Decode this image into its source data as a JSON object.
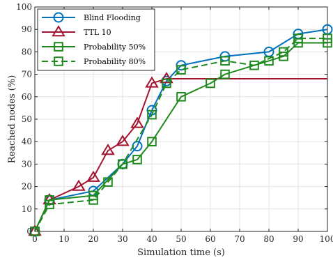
{
  "chart_data": {
    "type": "line",
    "xlabel": "Simulation time (s)",
    "ylabel": "Reached nodes (%)",
    "xlim": [
      0,
      100
    ],
    "ylim": [
      0,
      100
    ],
    "xticks": [
      0,
      10,
      20,
      30,
      40,
      50,
      60,
      70,
      80,
      90,
      100
    ],
    "yticks": [
      0,
      10,
      20,
      30,
      40,
      50,
      60,
      70,
      80,
      90,
      100
    ],
    "grid": true,
    "legend_position": "top-left",
    "series": [
      {
        "name": "Blind Flooding",
        "color": "#0072BD",
        "marker": "circle",
        "line_style": "solid",
        "x": [
          0,
          5,
          20,
          30,
          35,
          40,
          45,
          50,
          65,
          80,
          90,
          100
        ],
        "y": [
          0,
          14,
          18,
          30,
          38,
          54,
          67,
          74,
          78,
          80,
          88,
          90
        ]
      },
      {
        "name": "TTL 10",
        "color": "#A2142F",
        "marker": "triangle",
        "line_style": "solid",
        "x": [
          0,
          5,
          15,
          20,
          25,
          30,
          35,
          40,
          45,
          100
        ],
        "y": [
          0,
          14,
          20,
          24,
          36,
          40,
          48,
          66,
          68,
          68
        ],
        "marker_x": [
          0,
          5,
          15,
          20,
          25,
          30,
          35,
          40,
          45
        ],
        "marker_y": [
          0,
          14,
          20,
          24,
          36,
          40,
          48,
          66,
          68
        ]
      },
      {
        "name": "Probability 50%",
        "color": "#1E8A1E",
        "marker": "square",
        "line_style": "solid",
        "x": [
          0,
          5,
          20,
          30,
          35,
          40,
          50,
          60,
          65,
          80,
          85,
          90,
          100
        ],
        "y": [
          0,
          14,
          16,
          30,
          32,
          40,
          60,
          66,
          70,
          76,
          78,
          84,
          84
        ]
      },
      {
        "name": "Probability 80%",
        "color": "#1E8A1E",
        "marker": "square",
        "line_style": "dashed",
        "x": [
          0,
          5,
          20,
          25,
          30,
          40,
          45,
          50,
          65,
          75,
          85,
          90,
          100
        ],
        "y": [
          0,
          12,
          14,
          22,
          30,
          52,
          66,
          72,
          76,
          74,
          80,
          86,
          86
        ]
      }
    ]
  }
}
